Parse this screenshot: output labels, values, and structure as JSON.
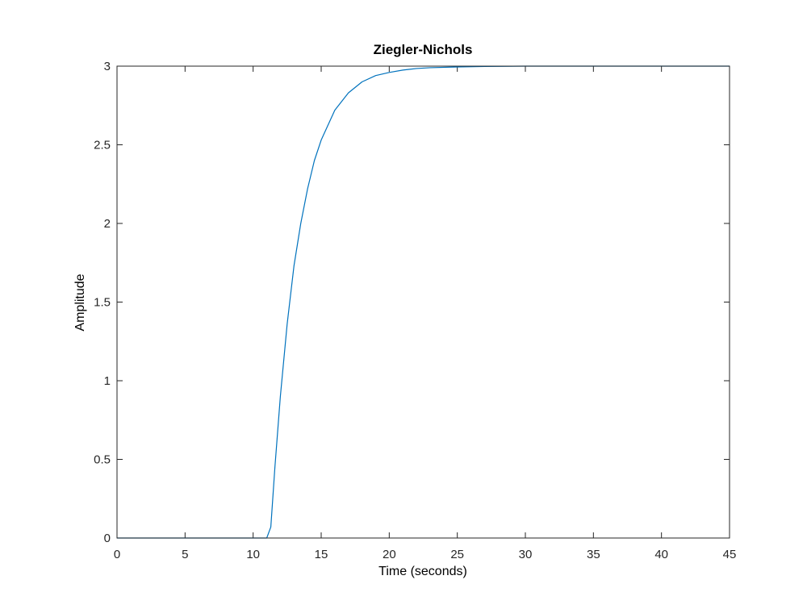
{
  "chart_data": {
    "type": "line",
    "title": "Ziegler-Nichols",
    "xlabel": "Time (seconds)",
    "ylabel": "Amplitude",
    "xlim": [
      0,
      45
    ],
    "ylim": [
      0,
      3
    ],
    "xticks": [
      "0",
      "5",
      "10",
      "15",
      "20",
      "25",
      "30",
      "35",
      "40",
      "45"
    ],
    "yticks": [
      "0",
      "0.5",
      "1",
      "1.5",
      "2",
      "2.5",
      "3"
    ],
    "grid": false,
    "series": [
      {
        "color": "#0072BD",
        "x": [
          0,
          5,
          10,
          11.0,
          11.3,
          11.6,
          12.0,
          12.5,
          13.0,
          13.5,
          14.0,
          14.5,
          15.0,
          16.0,
          17.0,
          18.0,
          19.0,
          20.0,
          21.0,
          22.0,
          23.0,
          25.0,
          27.0,
          30.0,
          35.0,
          40.0,
          45.0
        ],
        "y": [
          0,
          0,
          0,
          0,
          0.07,
          0.45,
          0.9,
          1.36,
          1.73,
          2.0,
          2.22,
          2.4,
          2.53,
          2.72,
          2.83,
          2.9,
          2.94,
          2.96,
          2.975,
          2.985,
          2.99,
          2.995,
          2.998,
          3.0,
          3.0,
          3.0,
          3.0
        ]
      }
    ]
  }
}
